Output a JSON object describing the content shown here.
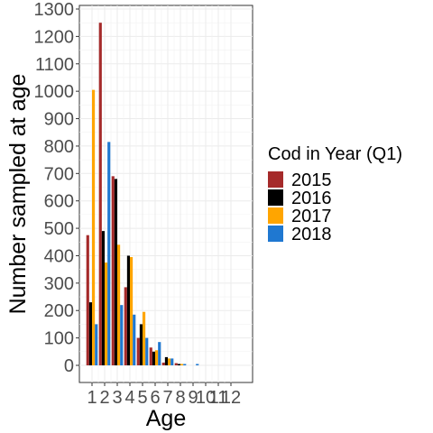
{
  "chart_data": {
    "type": "bar",
    "title": "",
    "xlabel": "Age",
    "ylabel": "Number sampled at age",
    "categories": [
      "1",
      "2",
      "3",
      "4",
      "5",
      "6",
      "7",
      "8",
      "9",
      "10",
      "11",
      "12"
    ],
    "ylim": [
      0,
      1300
    ],
    "yticks": [
      0,
      100,
      200,
      300,
      400,
      500,
      600,
      700,
      800,
      900,
      1000,
      1100,
      1200,
      1300
    ],
    "grid": true,
    "legend_title": "Cod in Year (Q1)",
    "legend_position": "right",
    "series": [
      {
        "name": "2015",
        "color": "#A52A2A",
        "values": [
          475,
          1250,
          690,
          285,
          100,
          65,
          10,
          8,
          0,
          0,
          0,
          0
        ]
      },
      {
        "name": "2016",
        "color": "#000000",
        "values": [
          230,
          490,
          680,
          400,
          150,
          50,
          30,
          5,
          0,
          0,
          0,
          0
        ]
      },
      {
        "name": "2017",
        "color": "#FFA500",
        "values": [
          1005,
          375,
          440,
          395,
          195,
          55,
          25,
          5,
          0,
          0,
          0,
          0
        ]
      },
      {
        "name": "2018",
        "color": "#1F78D1",
        "values": [
          150,
          815,
          220,
          185,
          100,
          85,
          25,
          5,
          5,
          0,
          0,
          0
        ]
      }
    ]
  }
}
